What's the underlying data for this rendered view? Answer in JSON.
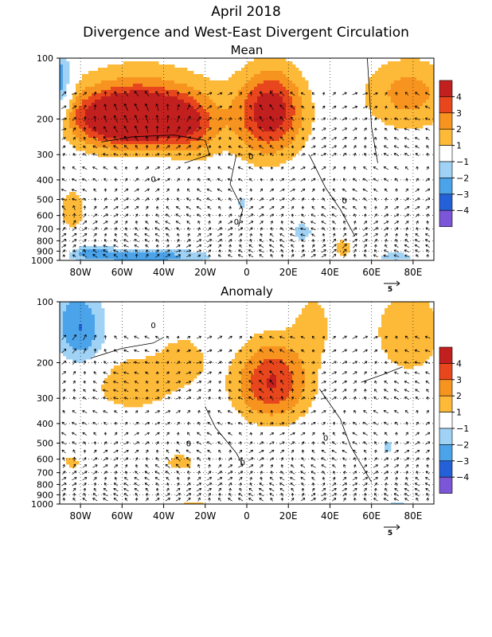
{
  "header": {
    "title": "April 2018",
    "subtitle": "Divergence and West-East Divergent Circulation"
  },
  "chart_data": [
    {
      "type": "heatmap",
      "title": "Mean",
      "x_ticks": [
        "80W",
        "60W",
        "40W",
        "20W",
        "0",
        "20E",
        "40E",
        "60E",
        "80E"
      ],
      "x_tick_values": [
        -80,
        -60,
        -40,
        -20,
        0,
        20,
        40,
        60,
        80
      ],
      "xlim": [
        -90,
        90
      ],
      "y_ticks": [
        "100",
        "200",
        "300",
        "400",
        "500",
        "600",
        "700",
        "800",
        "900",
        "1000"
      ],
      "y_tick_values": [
        100,
        200,
        300,
        400,
        500,
        600,
        700,
        800,
        900,
        1000
      ],
      "ylim": [
        1000,
        100
      ],
      "y_scale": "log",
      "grid": true,
      "colorbar": {
        "levels": [
          "4",
          "3",
          "2",
          "1",
          "-1",
          "-2",
          "-3",
          "-4"
        ],
        "colors": [
          "#c21f1f",
          "#e8461c",
          "#f7931f",
          "#fdb938",
          "#ffffff",
          "#9fd2f5",
          "#4ba3ea",
          "#2461d8",
          "#7b56d6"
        ]
      },
      "vector_reference": "5",
      "contour_label": "0",
      "blobs": [
        {
          "lon": -62,
          "lev": 200,
          "sx": 18,
          "sy": 0.22,
          "v": 4.5
        },
        {
          "lon": -42,
          "lev": 200,
          "sx": 14,
          "sy": 0.2,
          "v": 3.2
        },
        {
          "lon": -50,
          "lev": 160,
          "sx": 26,
          "sy": 0.35,
          "v": 2.0
        },
        {
          "lon": -25,
          "lev": 230,
          "sx": 8,
          "sy": 0.25,
          "v": 1.6
        },
        {
          "lon": 12,
          "lev": 170,
          "sx": 11,
          "sy": 0.33,
          "v": 3.8
        },
        {
          "lon": 8,
          "lev": 230,
          "sx": 14,
          "sy": 0.3,
          "v": 1.5
        },
        {
          "lon": 78,
          "lev": 150,
          "sx": 16,
          "sy": 0.3,
          "v": 2.4
        },
        {
          "lon": -90,
          "lev": 135,
          "sx": 4,
          "sy": 0.3,
          "v": -3.2
        },
        {
          "lon": -84,
          "lev": 560,
          "sx": 5,
          "sy": 0.2,
          "v": 1.6
        },
        {
          "lon": -50,
          "lev": 960,
          "sx": 22,
          "sy": 0.07,
          "v": -2.8
        },
        {
          "lon": -75,
          "lev": 900,
          "sx": 6,
          "sy": 0.06,
          "v": -1.8
        },
        {
          "lon": -2,
          "lev": 520,
          "sx": 2,
          "sy": 0.05,
          "v": -1.4
        },
        {
          "lon": 27,
          "lev": 720,
          "sx": 4,
          "sy": 0.1,
          "v": -1.4
        },
        {
          "lon": 46,
          "lev": 870,
          "sx": 4,
          "sy": 0.1,
          "v": 1.4
        },
        {
          "lon": 72,
          "lev": 960,
          "sx": 8,
          "sy": 0.05,
          "v": -1.4
        }
      ]
    },
    {
      "type": "heatmap",
      "title": "Anomaly",
      "x_ticks": [
        "80W",
        "60W",
        "40W",
        "20W",
        "0",
        "20E",
        "40E",
        "60E",
        "80E"
      ],
      "x_tick_values": [
        -80,
        -60,
        -40,
        -20,
        0,
        20,
        40,
        60,
        80
      ],
      "xlim": [
        -90,
        90
      ],
      "y_ticks": [
        "100",
        "200",
        "300",
        "400",
        "500",
        "600",
        "700",
        "800",
        "900",
        "1000"
      ],
      "y_tick_values": [
        100,
        200,
        300,
        400,
        500,
        600,
        700,
        800,
        900,
        1000
      ],
      "ylim": [
        1000,
        100
      ],
      "y_scale": "log",
      "grid": true,
      "colorbar": {
        "levels": [
          "4",
          "3",
          "2",
          "1",
          "-1",
          "-2",
          "-3",
          "-4"
        ],
        "colors": [
          "#c21f1f",
          "#e8461c",
          "#f7931f",
          "#fdb938",
          "#ffffff",
          "#9fd2f5",
          "#4ba3ea",
          "#2461d8",
          "#7b56d6"
        ]
      },
      "vector_reference": "5",
      "contour_label": "0",
      "blobs": [
        {
          "lon": -82,
          "lev": 120,
          "sx": 9,
          "sy": 0.3,
          "v": -2.2
        },
        {
          "lon": -78,
          "lev": 160,
          "sx": 8,
          "sy": 0.25,
          "v": -1.4
        },
        {
          "lon": -55,
          "lev": 250,
          "sx": 18,
          "sy": 0.28,
          "v": 1.6
        },
        {
          "lon": -30,
          "lev": 190,
          "sx": 8,
          "sy": 0.2,
          "v": 1.4
        },
        {
          "lon": 12,
          "lev": 225,
          "sx": 12,
          "sy": 0.32,
          "v": 3.0
        },
        {
          "lon": 12,
          "lev": 290,
          "sx": 14,
          "sy": 0.25,
          "v": 1.5
        },
        {
          "lon": 32,
          "lev": 130,
          "sx": 7,
          "sy": 0.3,
          "v": 1.4
        },
        {
          "lon": 78,
          "lev": 140,
          "sx": 12,
          "sy": 0.35,
          "v": 2.0
        },
        {
          "lon": -84,
          "lev": 620,
          "sx": 3,
          "sy": 0.08,
          "v": 1.4
        },
        {
          "lon": -32,
          "lev": 620,
          "sx": 6,
          "sy": 0.08,
          "v": 1.5
        },
        {
          "lon": 68,
          "lev": 520,
          "sx": 2,
          "sy": 0.05,
          "v": -1.5
        },
        {
          "lon": -25,
          "lev": 990,
          "sx": 6,
          "sy": 0.03,
          "v": 1.4
        },
        {
          "lon": 72,
          "lev": 990,
          "sx": 4,
          "sy": 0.03,
          "v": -1.4
        }
      ]
    }
  ]
}
